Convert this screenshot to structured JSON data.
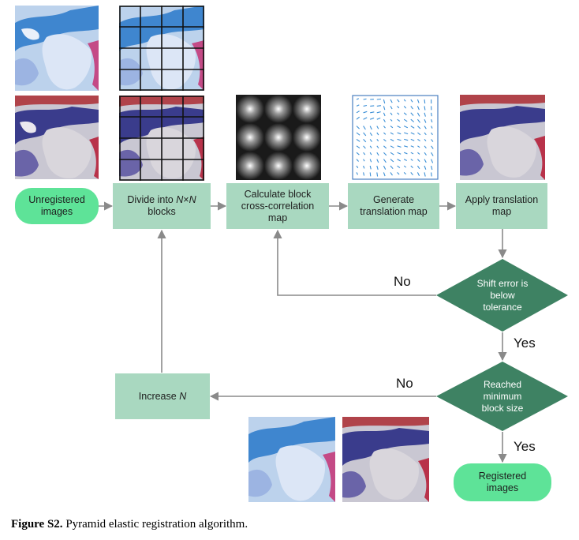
{
  "nodes": {
    "unregistered": [
      "Unregistered",
      "images"
    ],
    "divide": {
      "line1_pre": "Divide into ",
      "line1_n1": "N",
      "line1_x": "×",
      "line1_n2": "N",
      "line2": "blocks"
    },
    "calc": [
      "Calculate block",
      "cross-correlation",
      "map"
    ],
    "generate": [
      "Generate",
      "translation map"
    ],
    "apply": [
      "Apply translation",
      "map"
    ],
    "shift": [
      "Shift error is",
      "below",
      "tolerance"
    ],
    "increase": {
      "pre": "Increase ",
      "n": "N"
    },
    "reached": [
      "Reached",
      "minimum",
      "block size"
    ],
    "registered": [
      "Registered",
      "images"
    ]
  },
  "edge_labels": {
    "no1": "No",
    "yes1": "Yes",
    "no2": "No",
    "yes2": "Yes"
  },
  "caption": {
    "bold": "Figure S2.",
    "text": " Pyramid elastic registration algorithm."
  },
  "colors": {
    "process": "#a9d8c0",
    "terminal": "#5ee398",
    "decision": "#3e8263",
    "connector": "#8a8a8a"
  }
}
